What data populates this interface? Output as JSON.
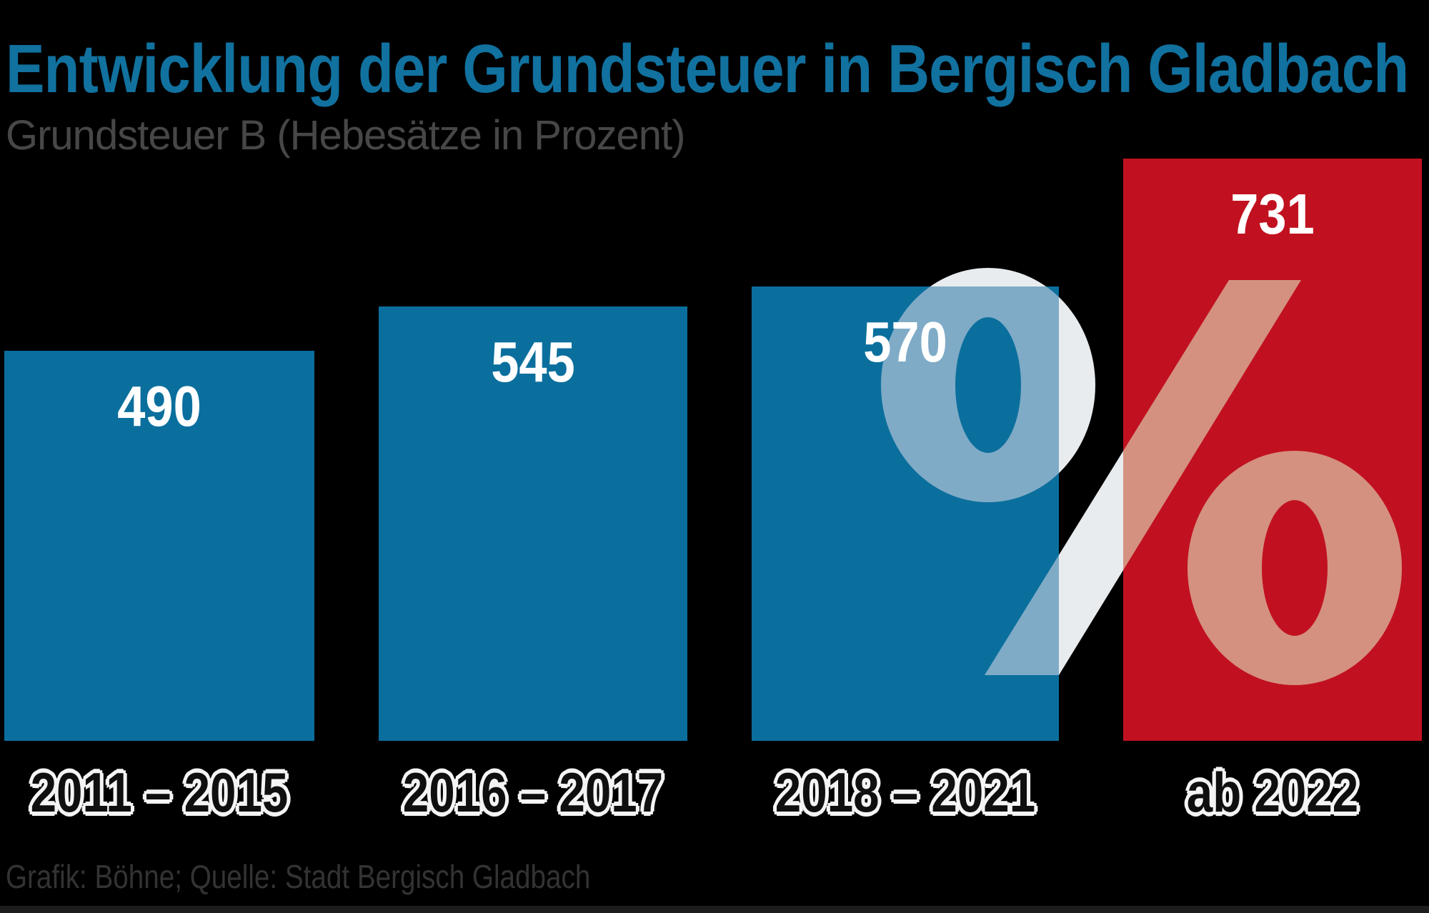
{
  "header": {
    "title": "Entwicklung der Grundsteuer in Bergisch Gladbach",
    "subtitle": "Grundsteuer B (Hebesätze in Prozent)"
  },
  "footer": {
    "credit": "Grafik: Böhne; Quelle: Stadt Bergisch Gladbach"
  },
  "chart_data": {
    "type": "bar",
    "title": "Entwicklung der Grundsteuer in Bergisch Gladbach",
    "subtitle": "Grundsteuer B (Hebesätze in Prozent)",
    "categories": [
      "2011 – 2015",
      "2016 – 2017",
      "2018 – 2021",
      "ab 2022"
    ],
    "values": [
      490,
      545,
      570,
      731
    ],
    "value_labels": [
      "490",
      "545",
      "570",
      "731"
    ],
    "bar_colors": [
      "#0b6f9d",
      "#0b6f9d",
      "#0b6f9d",
      "#c11120"
    ],
    "highlight_index": 3,
    "watermark_symbol": "%",
    "xlabel": "",
    "ylabel": "",
    "legend": "none",
    "grid": "off",
    "axes": "hidden"
  },
  "colors": {
    "background": "#000000",
    "title": "#11719f",
    "subtitle": "#474747",
    "bar_blue": "#0b6f9d",
    "bar_red": "#c11120",
    "value_label": "#ffffff",
    "category_text": "#0f0f0f",
    "category_halo": "#f4f4f4",
    "credit": "#333333",
    "bottom_strip": "#1d1d1d",
    "watermark_on_background": "#e9ecee",
    "watermark_on_blue": "#7fabc7",
    "watermark_on_red": "#d4917f"
  }
}
